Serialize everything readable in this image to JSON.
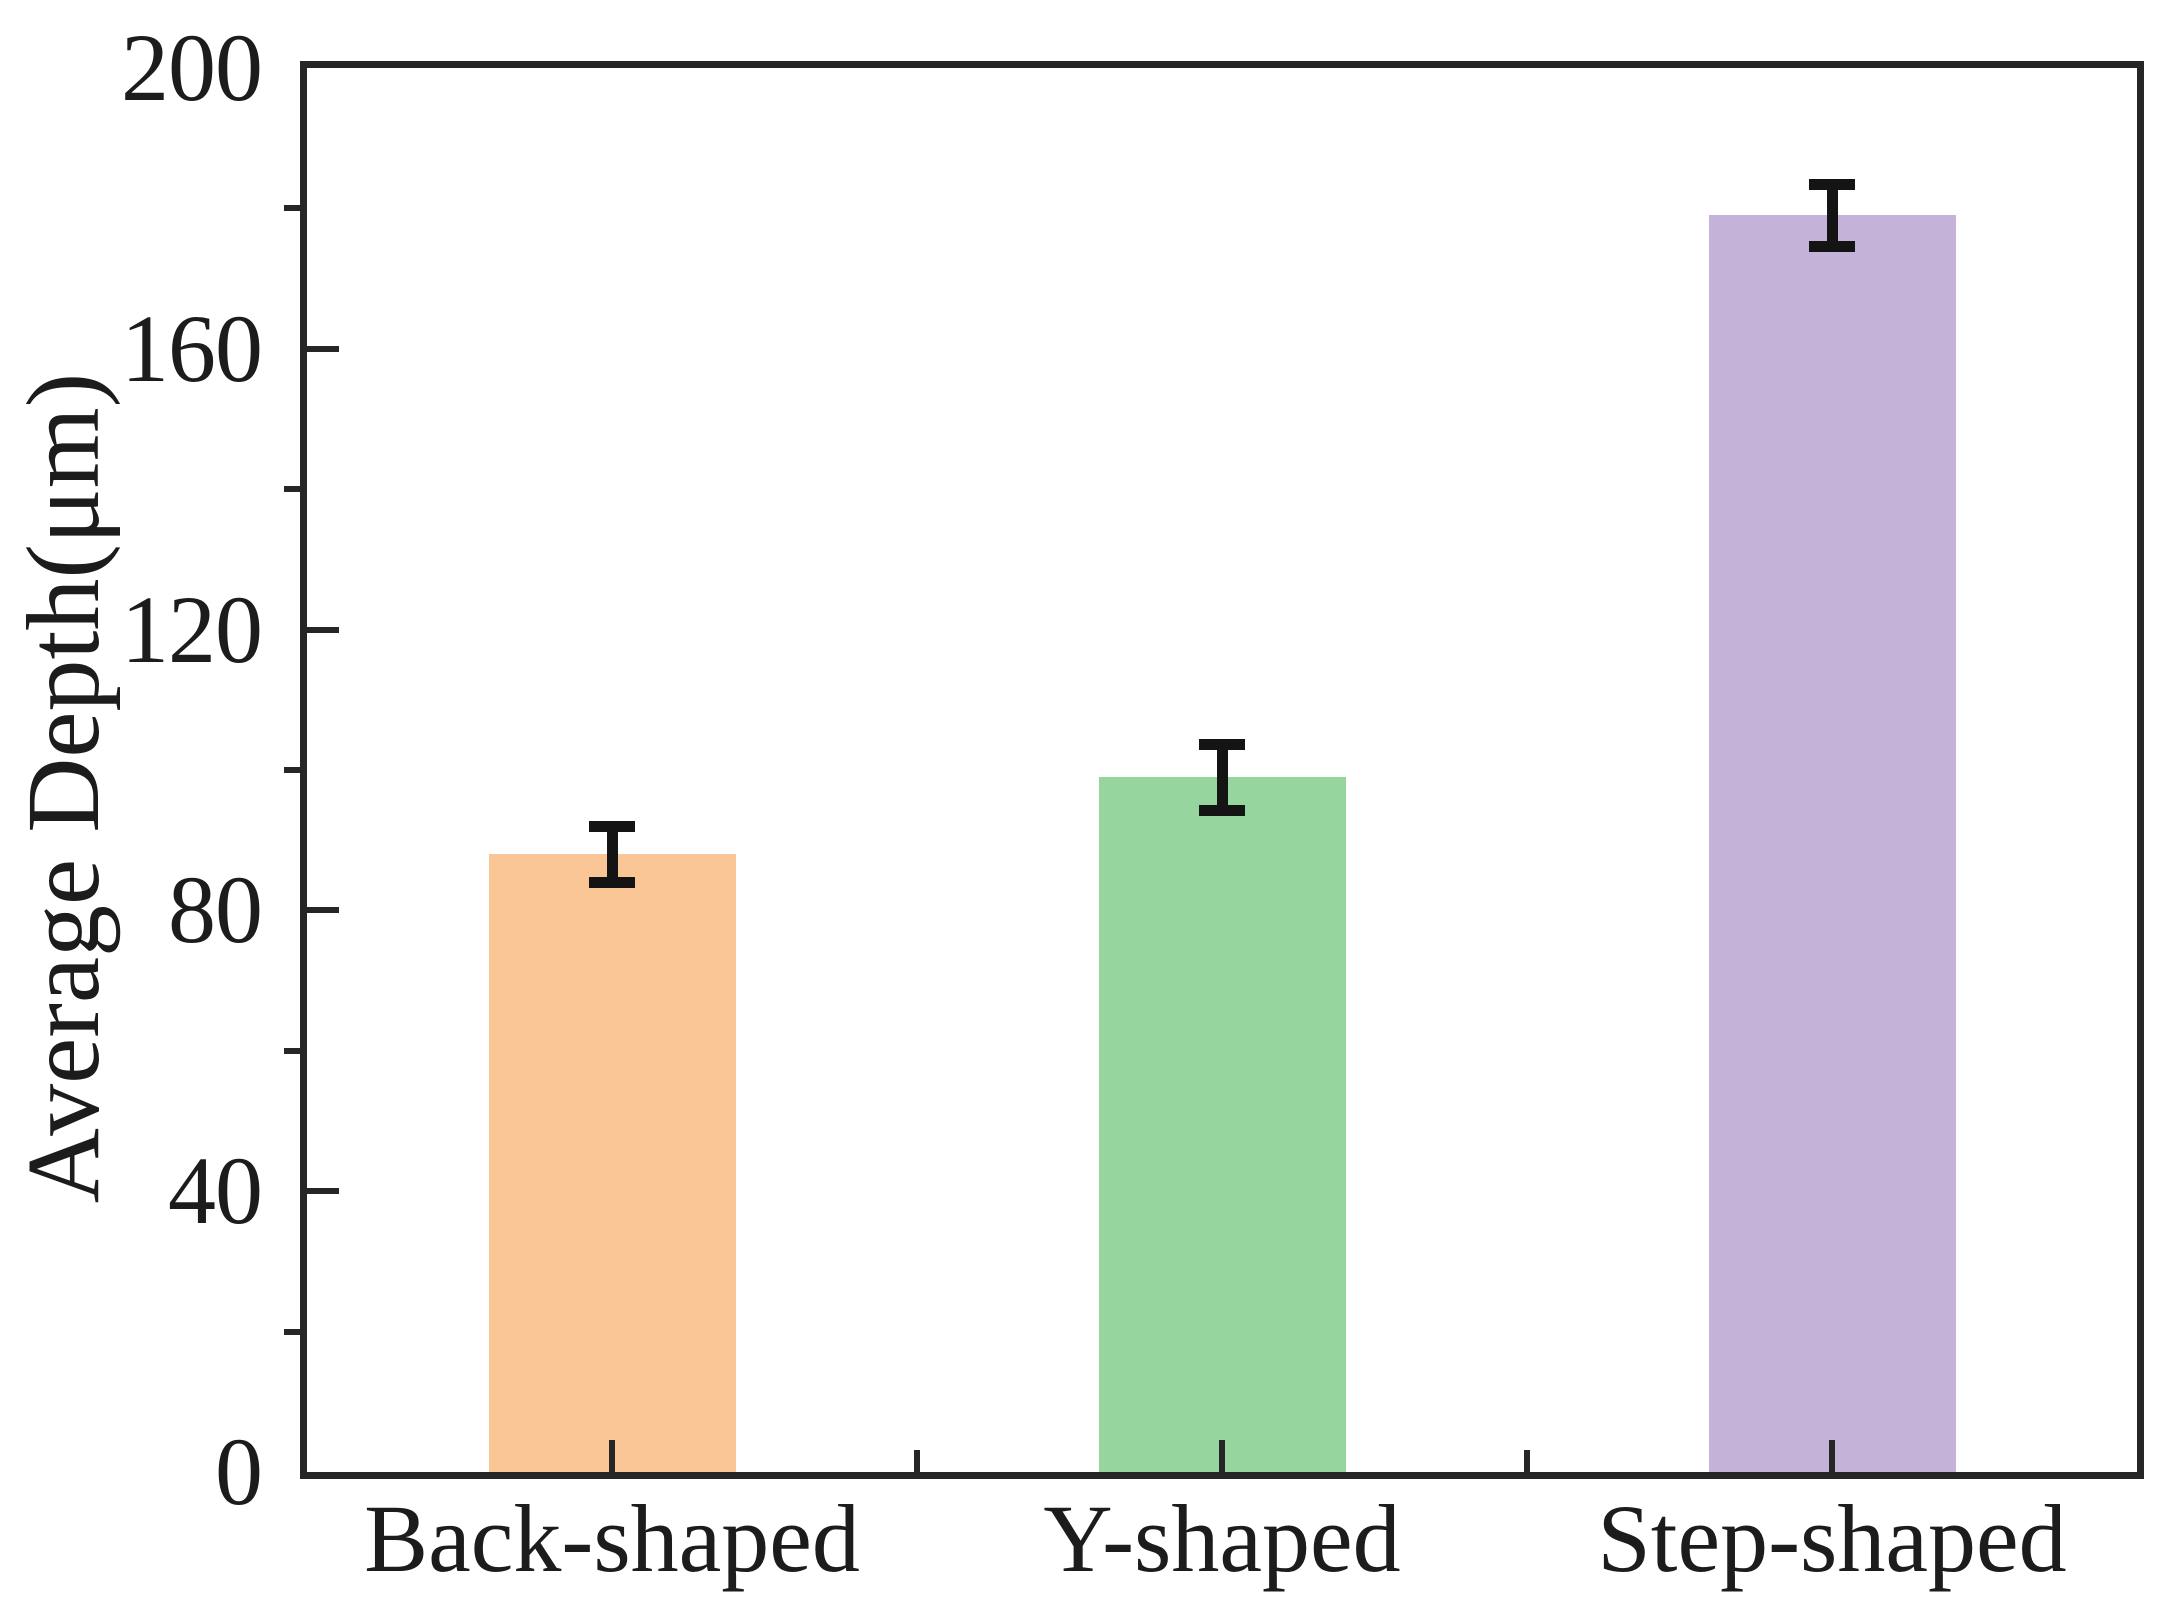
{
  "chart_data": {
    "type": "bar",
    "title": "",
    "categories": [
      "Back-shaped",
      "Y-shaped",
      "Step-shaped"
    ],
    "values": [
      88,
      99,
      179
    ],
    "errors": [
      4,
      4.7,
      4.4
    ],
    "series_name": "Average Depth",
    "bar_colors": [
      "#FAC696",
      "#96D69E",
      "#C4B2D8"
    ],
    "xlabel": "",
    "ylabel": "Average Depth(μm)",
    "ylim": [
      0,
      200
    ],
    "y_major_ticks": [
      0,
      40,
      80,
      120,
      160,
      200
    ],
    "y_minor_ticks": [
      20,
      60,
      100,
      140,
      180
    ],
    "grid": false,
    "legend": null,
    "error_bar_color": "#141414",
    "axis_color": "#262626",
    "background_color": "#ffffff"
  }
}
